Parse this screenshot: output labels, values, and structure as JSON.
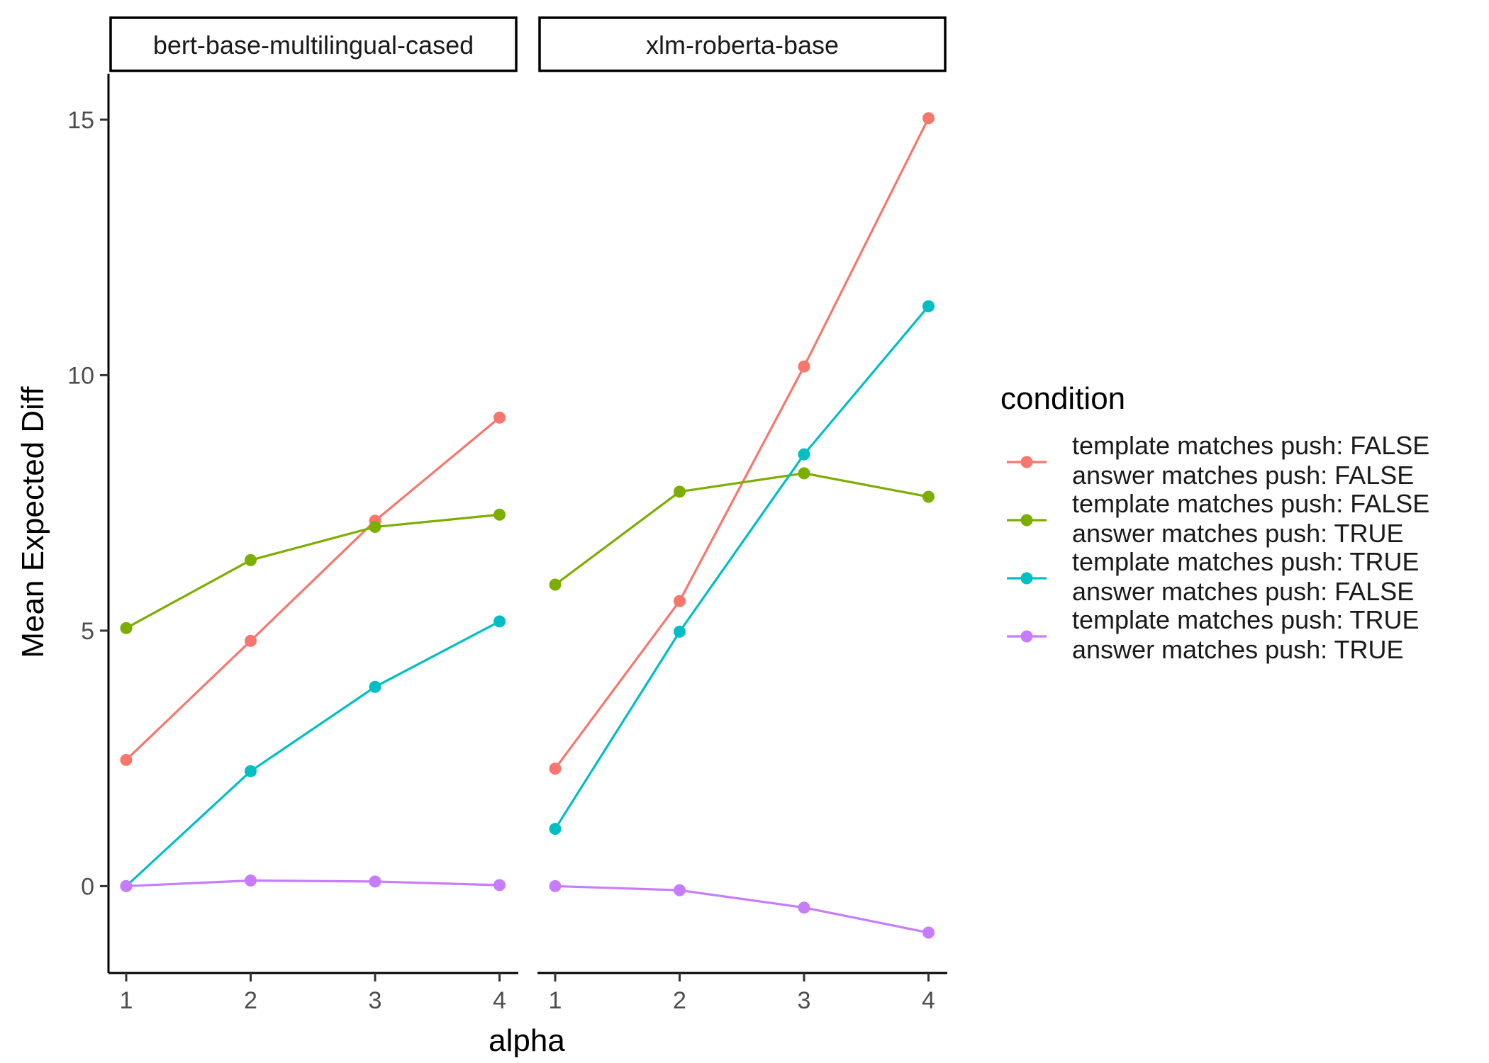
{
  "chart_data": {
    "type": "line",
    "xlabel": "alpha",
    "ylabel": "Mean Expected Diff",
    "x": [
      1,
      2,
      3,
      4
    ],
    "xticks": [
      "1",
      "2",
      "3",
      "4"
    ],
    "yticks": [
      "0",
      "5",
      "10",
      "15"
    ],
    "ytick_values": [
      0,
      5,
      10,
      15
    ],
    "ylim": [
      -1.7,
      15.9
    ],
    "grid": false,
    "legend": {
      "title": "condition",
      "placement": "right",
      "entries": [
        {
          "line1": "template matches push: FALSE",
          "line2": "answer matches push: FALSE",
          "color": "#F8766D"
        },
        {
          "line1": "template matches push: FALSE",
          "line2": "answer matches push: TRUE",
          "color": "#7CAE00"
        },
        {
          "line1": "template matches push: TRUE",
          "line2": "answer matches push: FALSE",
          "color": "#00BFC4"
        },
        {
          "line1": "template matches push: TRUE",
          "line2": "answer matches push: TRUE",
          "color": "#C77CFF"
        }
      ]
    },
    "panels": [
      {
        "title": "bert-base-multilingual-cased",
        "series": [
          {
            "color": "#F8766D",
            "values": [
              2.47,
              4.8,
              7.15,
              9.17
            ]
          },
          {
            "color": "#7CAE00",
            "values": [
              5.05,
              6.38,
              7.03,
              7.27
            ]
          },
          {
            "color": "#00BFC4",
            "values": [
              0.0,
              2.25,
              3.9,
              5.18
            ]
          },
          {
            "color": "#C77CFF",
            "values": [
              0.0,
              0.11,
              0.09,
              0.02
            ]
          }
        ]
      },
      {
        "title": "xlm-roberta-base",
        "series": [
          {
            "color": "#F8766D",
            "values": [
              2.3,
              5.58,
              10.17,
              15.03
            ]
          },
          {
            "color": "#7CAE00",
            "values": [
              5.9,
              7.72,
              8.08,
              7.62
            ]
          },
          {
            "color": "#00BFC4",
            "values": [
              1.12,
              4.98,
              8.45,
              11.35
            ]
          },
          {
            "color": "#C77CFF",
            "values": [
              0.0,
              -0.08,
              -0.42,
              -0.91
            ]
          }
        ]
      }
    ]
  }
}
